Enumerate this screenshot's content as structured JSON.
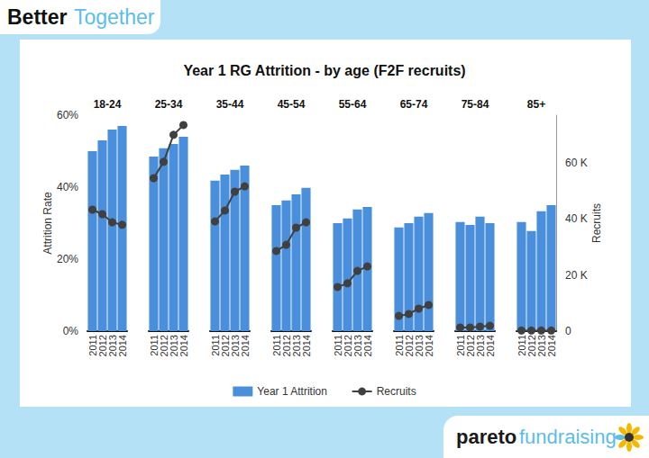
{
  "header": {
    "title": [
      "Better",
      "Together"
    ]
  },
  "footer": {
    "logo": [
      "pareto",
      "fundraising"
    ]
  },
  "chart_data": {
    "type": "bar",
    "title": "Year 1 RG Attrition - by age (F2F recruits)",
    "ylabel": "Attrition Rate",
    "y2label": "Recruits",
    "panels": [
      "18-24",
      "25-34",
      "35-44",
      "45-54",
      "55-64",
      "65-74",
      "75-84",
      "85+"
    ],
    "categories": [
      "2011",
      "2012",
      "2013",
      "2014"
    ],
    "ylim": [
      0,
      60
    ],
    "yticks": [
      {
        "value": 0,
        "label": "0%"
      },
      {
        "value": 20,
        "label": "20%"
      },
      {
        "value": 40,
        "label": "40%"
      },
      {
        "value": 60,
        "label": "60%"
      }
    ],
    "y2lim": [
      0,
      76800
    ],
    "y2ticks": [
      0,
      {
        "value": 20000,
        "label": "20 K"
      },
      {
        "value": 40000,
        "label": "40 K"
      },
      {
        "value": 60000,
        "label": "60 K"
      }
    ],
    "legend": "bottom",
    "series": [
      {
        "name": "Year 1 Attrition",
        "type": "bar",
        "color": "#4a8fdb",
        "values": [
          [
            50,
            53,
            56,
            57
          ],
          [
            48.5,
            50.8,
            52,
            54
          ],
          [
            41.8,
            43.5,
            44.8,
            46
          ],
          [
            35,
            36.3,
            38,
            39.8
          ],
          [
            30,
            31.3,
            33.8,
            34.5
          ],
          [
            28.8,
            30,
            31.8,
            32.8
          ],
          [
            30.3,
            29.5,
            31.8,
            30
          ],
          [
            30.3,
            27.8,
            33.3,
            35
          ]
        ]
      },
      {
        "name": "Recruits",
        "type": "line",
        "axis": "y2",
        "color": "#404040",
        "marker": "circle",
        "values": [
          [
            43200,
            41600,
            38700,
            37800
          ],
          [
            54400,
            60200,
            69800,
            73300
          ],
          [
            39000,
            42900,
            49600,
            51500
          ],
          [
            28500,
            30700,
            36800,
            38700
          ],
          [
            15700,
            17000,
            21400,
            23000
          ],
          [
            5400,
            6100,
            8000,
            9300
          ],
          [
            1300,
            1300,
            1600,
            1900
          ],
          [
            200,
            200,
            200,
            200
          ]
        ]
      }
    ]
  }
}
